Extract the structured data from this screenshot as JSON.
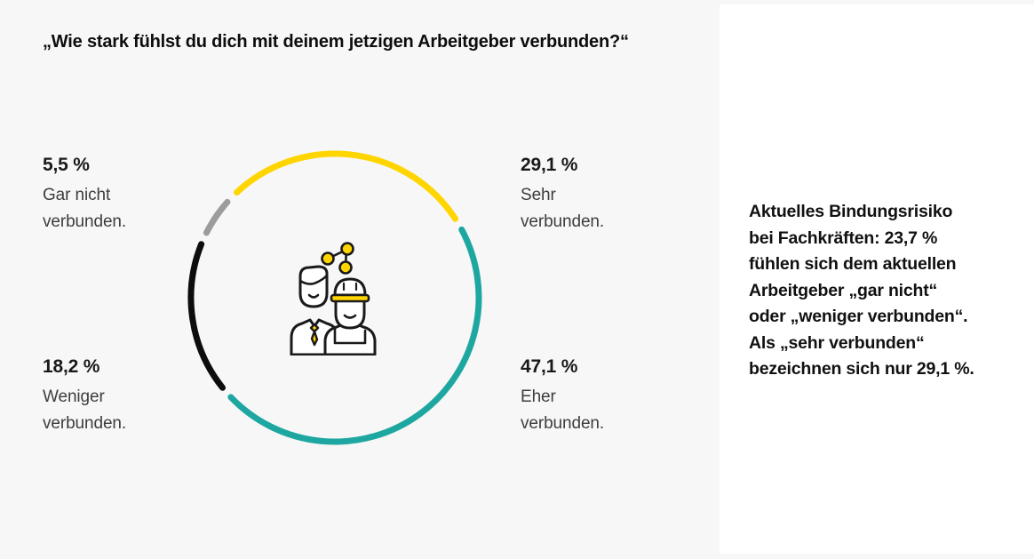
{
  "page": {
    "background_color": "#f7f7f7",
    "panel_color": "#ffffff"
  },
  "chart_data": {
    "type": "pie",
    "variant": "donut-arc-segments",
    "title": "„Wie stark fühlst du dich mit deinem jetzigen Arbeitgeber verbunden?“",
    "unit": "%",
    "start_angle_deg": -43,
    "gap_deg": 5,
    "stroke_width": 7,
    "legend_position": "around-chart",
    "segments": [
      {
        "name": "Sehr verbunden",
        "value_pct": 29.1,
        "display_value": "29,1 %",
        "label_lines": [
          "Sehr",
          "verbunden."
        ],
        "color": "#ffd500",
        "label_position": "top-right"
      },
      {
        "name": "Eher verbunden",
        "value_pct": 47.1,
        "display_value": "47,1 %",
        "label_lines": [
          "Eher",
          "verbunden."
        ],
        "color": "#1ea7a1",
        "label_position": "bottom-right"
      },
      {
        "name": "Weniger verbunden",
        "value_pct": 18.2,
        "display_value": "18,2 %",
        "label_lines": [
          "Weniger",
          "verbunden."
        ],
        "color": "#0d0d0d",
        "label_position": "bottom-left"
      },
      {
        "name": "Gar nicht verbunden",
        "value_pct": 5.5,
        "display_value": "5,5 %",
        "label_lines": [
          "Gar nicht",
          "verbunden."
        ],
        "color": "#9c9c9c",
        "label_position": "top-left"
      }
    ],
    "center_icon": "business-person-and-construction-worker-with-network"
  },
  "sidebar": {
    "text": "Aktuelles Bindungsrisiko bei Fachkräften: 23,7 % fühlen sich dem aktuellen Arbeitgeber „gar nicht“ oder „weniger verbunden“. Als „sehr verbunden“ bezeichnen sich nur 29,1 %.",
    "lines": [
      "Aktuelles Bindungsrisiko",
      "bei Fachkräften: 23,7 %",
      "fühlen sich dem aktuellen",
      "Arbeitgeber „gar nicht“",
      "oder „weniger verbunden“.",
      "Als „sehr verbunden“",
      "bezeichnen sich nur 29,1 %."
    ]
  },
  "icon_colors": {
    "line": "#1a1a1a",
    "accent": "#ffd500"
  }
}
